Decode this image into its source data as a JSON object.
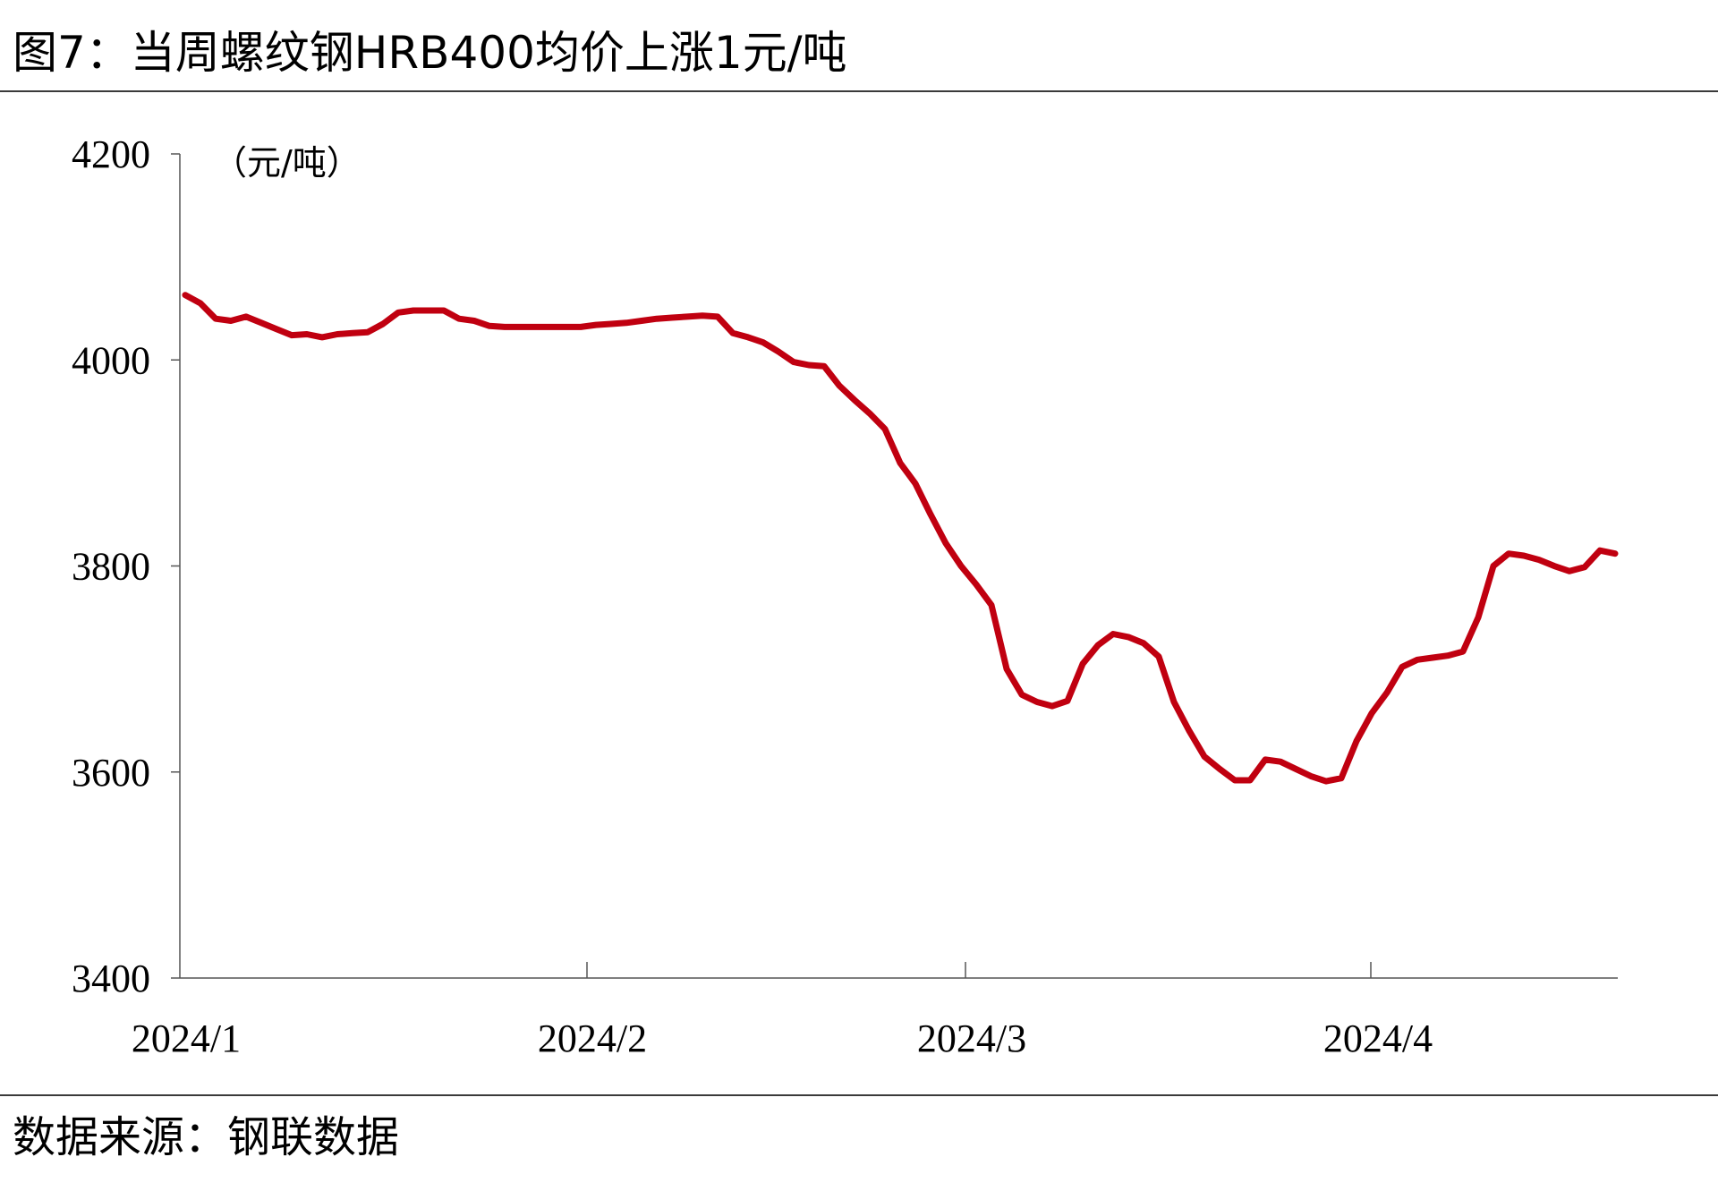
{
  "figure": {
    "title": "图7：当周螺纹钢HRB400均价上涨1元/吨",
    "source": "数据来源：钢联数据"
  },
  "chart_data": {
    "type": "line",
    "unit_label": "（元/吨）",
    "ylim": [
      3400,
      4200
    ],
    "yticks": [
      "4200",
      "4000",
      "3800",
      "3600",
      "3400"
    ],
    "xticks": [
      "2024/1",
      "2024/2",
      "2024/3",
      "2024/4"
    ],
    "grid": false,
    "line_color": "#c00010",
    "series": [
      {
        "values": [
          4063,
          4055,
          4040,
          4038,
          4042,
          4036,
          4030,
          4024,
          4025,
          4022,
          4025,
          4026,
          4027,
          4035,
          4046,
          4048,
          4048,
          4048,
          4040,
          4038,
          4033,
          4032,
          4032,
          4032,
          4032,
          4032,
          4032,
          4034,
          4035,
          4036,
          4038,
          4040,
          4041,
          4042,
          4043,
          4042,
          4026,
          4022,
          4017,
          4008,
          3998,
          3995,
          3994,
          3975,
          3961,
          3948,
          3933,
          3900,
          3880,
          3850,
          3822,
          3800,
          3782,
          3762,
          3700,
          3675,
          3668,
          3664,
          3669,
          3705,
          3723,
          3734,
          3731,
          3725,
          3712,
          3668,
          3640,
          3615,
          3603,
          3592,
          3592,
          3612,
          3610,
          3603,
          3596,
          3591,
          3594,
          3630,
          3657,
          3677,
          3702,
          3709,
          3711,
          3713,
          3717,
          3750,
          3800,
          3812,
          3810,
          3806,
          3800,
          3795,
          3799,
          3815,
          3812
        ]
      }
    ]
  }
}
